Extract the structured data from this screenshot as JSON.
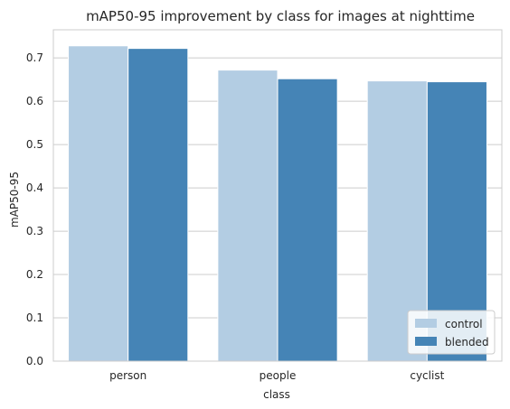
{
  "chart_data": {
    "type": "bar",
    "title": "mAP50-95 improvement by class for images at nighttime",
    "xlabel": "class",
    "ylabel": "mAP50-95",
    "categories": [
      "person",
      "people",
      "cyclist"
    ],
    "series": [
      {
        "name": "control",
        "values": [
          0.728,
          0.672,
          0.647
        ],
        "color": "#b3cde3"
      },
      {
        "name": "blended",
        "values": [
          0.722,
          0.652,
          0.645
        ],
        "color": "#4584b6"
      }
    ],
    "ylim": [
      0,
      0.765
    ],
    "yticks": [
      0.0,
      0.1,
      0.2,
      0.3,
      0.4,
      0.5,
      0.6,
      0.7
    ],
    "ytick_labels": [
      "0.0",
      "0.1",
      "0.2",
      "0.3",
      "0.4",
      "0.5",
      "0.6",
      "0.7"
    ],
    "grid": "y",
    "legend_position": "lower-right"
  }
}
